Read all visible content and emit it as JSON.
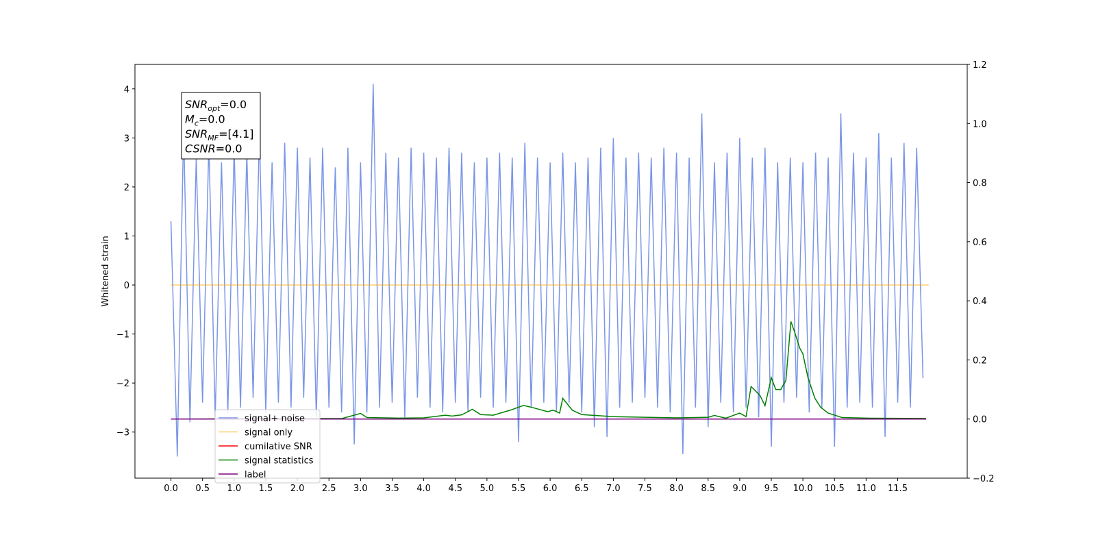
{
  "chart_data": {
    "type": "line",
    "ylabel": "Whitened strain",
    "xlim": [
      -0.57,
      12.6
    ],
    "ylim": [
      -3.94,
      4.5
    ],
    "y2lim": [
      -0.2,
      1.2
    ],
    "xticks": [
      {
        "value": 0,
        "label": "0.0"
      },
      0.5,
      {
        "value": 1,
        "label": "1.0"
      },
      1.5,
      {
        "value": 2,
        "label": "2.0"
      },
      2.5,
      {
        "value": 3,
        "label": "3.0"
      },
      3.5,
      {
        "value": 4,
        "label": "4.0"
      },
      4.5,
      {
        "value": 5,
        "label": "5.0"
      },
      5.5,
      {
        "value": 6,
        "label": "6.0"
      },
      6.5,
      {
        "value": 7,
        "label": "7.0"
      },
      7.5,
      {
        "value": 8,
        "label": "8.0"
      },
      8.5,
      {
        "value": 9,
        "label": "9.0"
      },
      9.5,
      {
        "value": 10,
        "label": "10.0"
      },
      10.5,
      {
        "value": 11,
        "label": "11.0"
      },
      11.5
    ],
    "yticks": [
      {
        "value": -3,
        "label": "−3"
      },
      {
        "value": -2,
        "label": "−2"
      },
      {
        "value": -1,
        "label": "−1"
      },
      0,
      1,
      2,
      3,
      4
    ],
    "y2ticks": [
      {
        "value": -0.2,
        "label": "−0.2"
      },
      {
        "value": 0,
        "label": "0.0"
      },
      0.2,
      0.4,
      0.6,
      0.8,
      {
        "value": 1,
        "label": "1.0"
      },
      1.2
    ],
    "legend_loc": "lower left",
    "annotation": [
      {
        "symbol": "SNR",
        "subscript": "opt",
        "text": "=0.0"
      },
      {
        "symbol": "M",
        "subscript": "c",
        "text": "=0.0"
      },
      {
        "symbol": "SNR",
        "subscript": "MF",
        "text": "=[4.1]"
      },
      {
        "symbol": "CSNR",
        "subscript": "",
        "text": "=0.0"
      }
    ],
    "series": [
      {
        "name": "signal+ noise",
        "color": "#7b96e6",
        "axis": "y",
        "x": [
          0,
          0.1,
          0.2,
          0.3,
          0.4,
          0.5,
          0.6,
          0.7,
          0.8,
          0.9,
          1,
          1.1,
          1.2,
          1.3,
          1.4,
          1.5,
          1.6,
          1.7,
          1.8,
          1.9,
          2,
          2.1,
          2.2,
          2.3,
          2.4,
          2.5,
          2.6,
          2.7,
          2.8,
          2.9,
          3,
          3.1,
          3.2,
          3.3,
          3.4,
          3.5,
          3.6,
          3.7,
          3.8,
          3.9,
          4,
          4.1,
          4.2,
          4.3,
          4.4,
          4.5,
          4.6,
          4.7,
          4.8,
          4.9,
          5,
          5.1,
          5.2,
          5.3,
          5.4,
          5.5,
          5.6,
          5.7,
          5.8,
          5.9,
          6,
          6.1,
          6.2,
          6.3,
          6.4,
          6.5,
          6.6,
          6.7,
          6.8,
          6.9,
          7,
          7.1,
          7.2,
          7.3,
          7.4,
          7.5,
          7.6,
          7.7,
          7.8,
          7.9,
          8,
          8.1,
          8.2,
          8.3,
          8.4,
          8.5,
          8.6,
          8.7,
          8.8,
          8.9,
          9,
          9.1,
          9.2,
          9.3,
          9.4,
          9.5,
          9.6,
          9.7,
          9.8,
          9.9,
          10,
          10.1,
          10.2,
          10.3,
          10.4,
          10.5,
          10.6,
          10.7,
          10.8,
          10.9,
          11,
          11.1,
          11.2,
          11.3,
          11.4,
          11.5,
          11.6,
          11.7,
          11.8,
          11.9
        ],
        "values": [
          1.3,
          -3.5,
          3.2,
          -2.8,
          2.6,
          -2.4,
          2.9,
          -2.7,
          2.5,
          -2.6,
          2.8,
          -2.5,
          2.7,
          -2.3,
          3.1,
          -2.6,
          2.5,
          -2.4,
          2.9,
          -2.5,
          2.8,
          -2.3,
          2.6,
          -2.7,
          2.8,
          -2.5,
          2.4,
          -2.6,
          2.8,
          -3.25,
          2.5,
          -2.6,
          4.1,
          -2.5,
          2.7,
          -2.4,
          2.6,
          -2.7,
          2.8,
          -2.3,
          2.7,
          -2.5,
          2.6,
          -2.6,
          2.8,
          -2.4,
          2.7,
          -2.6,
          2.5,
          -2.3,
          2.6,
          -2.5,
          2.7,
          -2.4,
          2.6,
          -3.2,
          2.9,
          -2.5,
          2.6,
          -2.4,
          2.5,
          -2.6,
          2.7,
          -2.4,
          2.5,
          -2.6,
          2.6,
          -2.9,
          2.8,
          -3.1,
          3.0,
          -2.5,
          2.6,
          -2.4,
          2.7,
          -2.3,
          2.6,
          -2.5,
          2.8,
          -2.6,
          2.7,
          -3.45,
          2.6,
          -2.5,
          3.5,
          -2.9,
          2.5,
          -2.4,
          2.7,
          -2.6,
          3.0,
          -2.5,
          2.6,
          -2.7,
          2.8,
          -3.3,
          2.5,
          -2.4,
          2.6,
          -2.3,
          2.5,
          -2.6,
          2.7,
          -2.5,
          2.6,
          -3.3,
          3.5,
          -2.5,
          2.7,
          -2.4,
          2.6,
          -2.5,
          3.1,
          -3.1,
          2.6,
          -2.4,
          2.9,
          -2.5,
          2.8,
          -1.9
        ]
      },
      {
        "name": "signal only",
        "color": "#ffa500",
        "axis": "y",
        "x": [
          0,
          11.99
        ],
        "values": [
          0,
          0
        ]
      },
      {
        "name": "cumilative SNR",
        "color": "#ff0000",
        "axis": "y2",
        "x": [
          0,
          11.95
        ],
        "values": [
          0,
          0
        ]
      },
      {
        "name": "signal statistics",
        "color": "#008000",
        "axis": "y2",
        "x": [
          0,
          2.71,
          3.0,
          3.1,
          3.6,
          4.0,
          4.34,
          4.45,
          4.6,
          4.77,
          4.9,
          5.1,
          5.37,
          5.58,
          5.7,
          5.96,
          6.05,
          6.15,
          6.2,
          6.35,
          6.5,
          7.0,
          7.5,
          8.0,
          8.5,
          8.6,
          8.78,
          9.0,
          9.1,
          9.18,
          9.32,
          9.4,
          9.5,
          9.57,
          9.65,
          9.73,
          9.81,
          9.86,
          9.95,
          10.0,
          10.08,
          10.19,
          10.28,
          10.4,
          10.62,
          11.0,
          11.95
        ],
        "values": [
          0,
          0.002,
          0.019,
          0.005,
          0.003,
          0.004,
          0.013,
          0.01,
          0.014,
          0.033,
          0.015,
          0.013,
          0.03,
          0.046,
          0.04,
          0.025,
          0.03,
          0.02,
          0.07,
          0.03,
          0.015,
          0.008,
          0.006,
          0.004,
          0.006,
          0.012,
          0.003,
          0.02,
          0.008,
          0.11,
          0.08,
          0.045,
          0.14,
          0.1,
          0.1,
          0.13,
          0.33,
          0.3,
          0.24,
          0.22,
          0.14,
          0.07,
          0.04,
          0.02,
          0.005,
          0.003,
          0.002
        ]
      },
      {
        "name": "label",
        "color": "#800080",
        "axis": "y2",
        "x": [
          0,
          11.95
        ],
        "values": [
          0,
          0
        ]
      }
    ]
  }
}
